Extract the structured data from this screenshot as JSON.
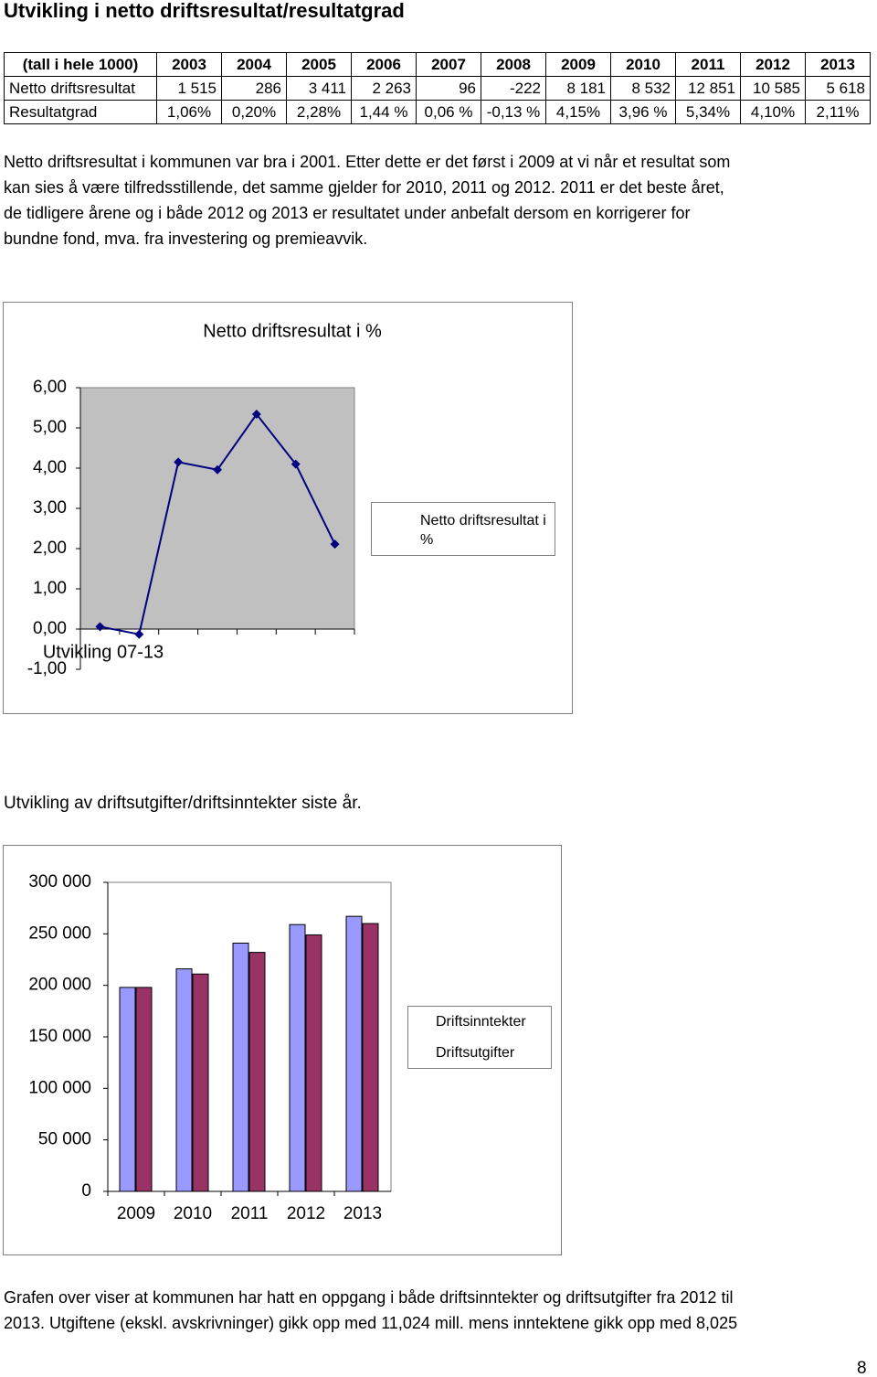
{
  "title": "Utvikling i netto driftsresultat/resultatgrad",
  "table": {
    "header": [
      "(tall i hele 1000)",
      "2003",
      "2004",
      "2005",
      "2006",
      "2007",
      "2008",
      "2009",
      "2010",
      "2011",
      "2012",
      "2013"
    ],
    "rows": [
      [
        "Netto driftsresultat",
        "1 515",
        "286",
        "3 411",
        "2 263",
        "96",
        "-222",
        "8 181",
        "8 532",
        "12 851",
        "10 585",
        "5 618"
      ],
      [
        "Resultatgrad",
        "1,06%",
        "0,20%",
        "2,28%",
        "1,44 %",
        "0,06 %",
        "-0,13 %",
        "4,15%",
        "3,96 %",
        "5,34%",
        "4,10%",
        "2,11%"
      ]
    ]
  },
  "paragraph": [
    "Netto driftsresultat i kommunen var bra i 2001. Etter dette er det først i 2009 at vi når et resultat som",
    "kan sies å være tilfredsstillende, det samme gjelder for 2010, 2011 og 2012. 2011 er det beste året,",
    "de tidligere årene og i både 2012 og 2013 er resultatet under anbefalt dersom en korrigerer for",
    "bundne fond, mva. fra investering og premieavvik."
  ],
  "chart_data": [
    {
      "type": "line",
      "title": "Netto driftsresultat i %",
      "x_label": "Utvikling 07-13",
      "categories": [
        null,
        null,
        null,
        null,
        null,
        null,
        null
      ],
      "series": [
        {
          "name": "Netto driftsresultat i %",
          "color": "#000080",
          "values": [
            0.06,
            -0.13,
            4.15,
            3.96,
            5.34,
            4.1,
            2.11
          ]
        }
      ],
      "ylim": [
        -1,
        6
      ],
      "yticks": [
        {
          "value": 6,
          "label": "6,00"
        },
        {
          "value": 5,
          "label": "5,00"
        },
        {
          "value": 4,
          "label": "4,00"
        },
        {
          "value": 3,
          "label": "3,00"
        },
        {
          "value": 2,
          "label": "2,00"
        },
        {
          "value": 1,
          "label": "1,00"
        },
        {
          "value": 0,
          "label": "0,00"
        },
        {
          "value": -1,
          "label": "-1,00"
        }
      ],
      "legend": "right",
      "plot_color": "#c0c0c0"
    },
    {
      "type": "bar",
      "categories": [
        "2009",
        "2010",
        "2011",
        "2012",
        "2013"
      ],
      "series": [
        {
          "name": "Driftsinntekter",
          "color": "#9999ff",
          "values": [
            198000,
            216000,
            241000,
            259000,
            267000
          ]
        },
        {
          "name": "Driftsutgifter",
          "color": "#993366",
          "values": [
            198000,
            211000,
            232000,
            249000,
            260000
          ]
        }
      ],
      "ylim": [
        0,
        300000
      ],
      "yticks": [
        {
          "value": 300000,
          "label": "300 000"
        },
        {
          "value": 250000,
          "label": "250 000"
        },
        {
          "value": 200000,
          "label": "200 000"
        },
        {
          "value": 150000,
          "label": "150 000"
        },
        {
          "value": 100000,
          "label": "100 000"
        },
        {
          "value": 50000,
          "label": "50 000"
        },
        0
      ],
      "legend": "right",
      "plot_color": "#ffffff"
    }
  ],
  "caption": "Utvikling av driftsutgifter/driftsinntekter siste år.",
  "paragraph2": [
    "Grafen over viser at kommunen har hatt en oppgang i både driftsinntekter og driftsutgifter fra 2012 til",
    "2013. Utgiftene (ekskl. avskrivninger) gikk opp med 11,024 mill. mens inntektene gikk opp med 8,025"
  ],
  "page_number": "8"
}
